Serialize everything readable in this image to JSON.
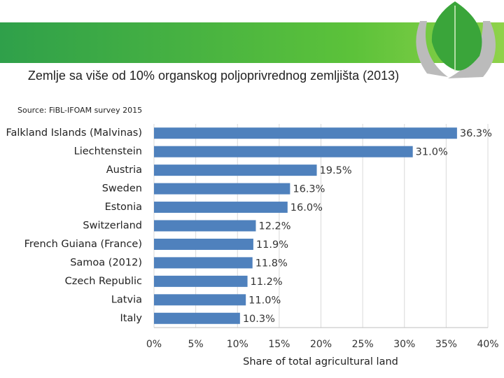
{
  "chart_data": {
    "type": "bar",
    "orientation": "horizontal",
    "title": "Zemlje sa više od 10% organskog poljoprivrednog zemljišta (2013)",
    "source": "Source: FiBL-IFOAM survey 2015",
    "x_label": "Share of total agricultural land",
    "categories": [
      "Falkland Islands (Malvinas)",
      "Liechtenstein",
      "Austria",
      "Sweden",
      "Estonia",
      "Switzerland",
      "French Guiana (France)",
      "Samoa (2012)",
      "Czech Republic",
      "Latvia",
      "Italy"
    ],
    "values": [
      36.3,
      31.0,
      19.5,
      16.3,
      16.0,
      12.2,
      11.9,
      11.8,
      11.2,
      11.0,
      10.3
    ],
    "value_labels": [
      "36.3%",
      "31.0%",
      "19.5%",
      "16.3%",
      "16.0%",
      "12.2%",
      "11.9%",
      "11.8%",
      "11.2%",
      "11.0%",
      "10.3%"
    ],
    "color": "#4f81bd",
    "xlim": [
      0,
      40
    ],
    "xticks": [
      {
        "value": 0,
        "label": "0%"
      },
      {
        "value": 5,
        "label": "5%"
      },
      {
        "value": 10,
        "label": "10%"
      },
      {
        "value": 15,
        "label": "15%"
      },
      {
        "value": 20,
        "label": "20%"
      },
      {
        "value": 25,
        "label": "25%"
      },
      {
        "value": 30,
        "label": "30%"
      },
      {
        "value": 35,
        "label": "35%"
      },
      {
        "value": 40,
        "label": "40%"
      }
    ],
    "grid": true
  }
}
